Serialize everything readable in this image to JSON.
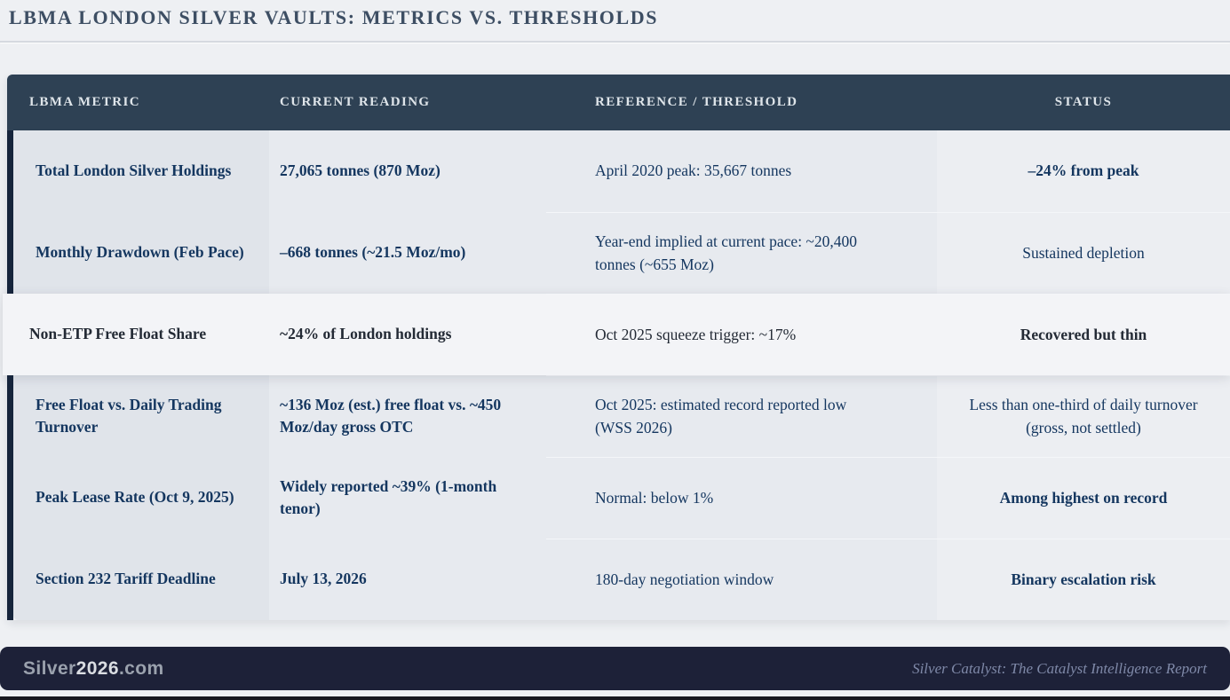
{
  "title": "LBMA LONDON SILVER VAULTS: METRICS VS. THRESHOLDS",
  "table": {
    "columns": [
      "LBMA METRIC",
      "CURRENT READING",
      "REFERENCE / THRESHOLD",
      "STATUS"
    ],
    "rows": [
      {
        "metric": "Total London Silver Holdings",
        "reading": "27,065 tonnes (870 Moz)",
        "reference": "April 2020 peak: 35,667 tonnes",
        "status": "–24% from peak",
        "status_bold": true,
        "highlight": false
      },
      {
        "metric": "Monthly Drawdown (Feb Pace)",
        "reading": "–668 tonnes (~21.5 Moz/mo)",
        "reference": "Year-end implied at current pace: ~20,400 tonnes (~655 Moz)",
        "status": "Sustained depletion",
        "status_bold": false,
        "highlight": false
      },
      {
        "metric": "Non-ETP Free Float Share",
        "reading": "~24% of London holdings",
        "reference": "Oct 2025 squeeze trigger: ~17%",
        "status": "Recovered but thin",
        "status_bold": true,
        "highlight": true
      },
      {
        "metric": "Free Float vs. Daily Trading Turnover",
        "reading": "~136 Moz (est.) free float vs. ~450 Moz/day gross OTC",
        "reference": "Oct 2025: estimated record reported low (WSS 2026)",
        "status": "Less than one-third of daily turnover (gross, not settled)",
        "status_bold": false,
        "highlight": false
      },
      {
        "metric": "Peak Lease Rate (Oct 9, 2025)",
        "reading": "Widely reported ~39% (1-month tenor)",
        "reference": "Normal: below 1%",
        "status": "Among highest on record",
        "status_bold": true,
        "highlight": false
      },
      {
        "metric": "Section 232 Tariff Deadline",
        "reading": "July 13, 2026",
        "reference": "180-day negotiation window",
        "status": "Binary escalation risk",
        "status_bold": true,
        "highlight": false
      }
    ]
  },
  "footer": {
    "site_prefix": "Silver",
    "site_year": "2026",
    "site_suffix": ".com",
    "tagline": "Silver Catalyst: The Catalyst Intelligence Report"
  },
  "colors": {
    "page_bg": "#eef0f3",
    "header_bg": "#2e4154",
    "accent_border": "#16253c",
    "navy_text": "#14365f",
    "highlight_row_bg": "#f3f4f7",
    "footer_bg": "#1d2138"
  },
  "chart_data": {
    "type": "table",
    "title": "LBMA LONDON SILVER VAULTS: METRICS VS. THRESHOLDS",
    "columns": [
      "LBMA METRIC",
      "CURRENT READING",
      "REFERENCE / THRESHOLD",
      "STATUS"
    ],
    "rows": [
      [
        "Total London Silver Holdings",
        "27,065 tonnes (870 Moz)",
        "April 2020 peak: 35,667 tonnes",
        "–24% from peak"
      ],
      [
        "Monthly Drawdown (Feb Pace)",
        "–668 tonnes (~21.5 Moz/mo)",
        "Year-end implied at current pace: ~20,400 tonnes (~655 Moz)",
        "Sustained depletion"
      ],
      [
        "Non-ETP Free Float Share",
        "~24% of London holdings",
        "Oct 2025 squeeze trigger: ~17%",
        "Recovered but thin"
      ],
      [
        "Free Float vs. Daily Trading Turnover",
        "~136 Moz (est.) free float vs. ~450 Moz/day gross OTC",
        "Oct 2025: estimated record reported low (WSS 2026)",
        "Less than one-third of daily turnover (gross, not settled)"
      ],
      [
        "Peak Lease Rate (Oct 9, 2025)",
        "Widely reported ~39% (1-month tenor)",
        "Normal: below 1%",
        "Among highest on record"
      ],
      [
        "Section 232 Tariff Deadline",
        "July 13, 2026",
        "180-day negotiation window",
        "Binary escalation risk"
      ]
    ]
  }
}
